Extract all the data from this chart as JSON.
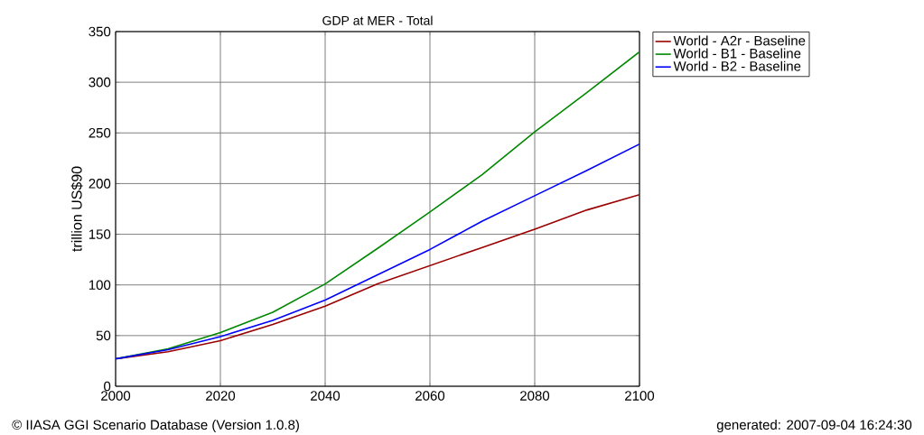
{
  "chart_data": {
    "type": "line",
    "title": "GDP at MER - Total",
    "ylabel": "trillion US$90",
    "x": [
      2000,
      2010,
      2020,
      2030,
      2040,
      2050,
      2060,
      2070,
      2080,
      2090,
      2100
    ],
    "series": [
      {
        "name": "World - A2r - Baseline",
        "color": "#990000",
        "values": [
          27,
          34,
          45,
          61,
          79,
          101,
          119,
          137,
          155,
          174,
          189
        ]
      },
      {
        "name": "World - B1 - Baseline",
        "color": "#008800",
        "values": [
          27,
          37,
          53,
          73,
          101,
          136,
          172,
          209,
          251,
          290,
          330
        ]
      },
      {
        "name": "World - B2 - Baseline",
        "color": "#0000ff",
        "values": [
          27,
          36,
          49,
          65,
          85,
          110,
          135,
          163,
          188,
          213,
          239
        ]
      }
    ],
    "xlim": [
      2000,
      2100
    ],
    "ylim": [
      0,
      350
    ],
    "xticks": [
      2000,
      2020,
      2040,
      2060,
      2080,
      2100
    ],
    "yticks": [
      0,
      50,
      100,
      150,
      200,
      250,
      300,
      350
    ],
    "grid": true,
    "legend": "top right",
    "marker": "none",
    "line_style": "solid",
    "annotations": [
      "© IIASA GGI Scenario Database (Version 1.0.8)",
      "generated: 2007-09-04 16:24:30"
    ]
  }
}
